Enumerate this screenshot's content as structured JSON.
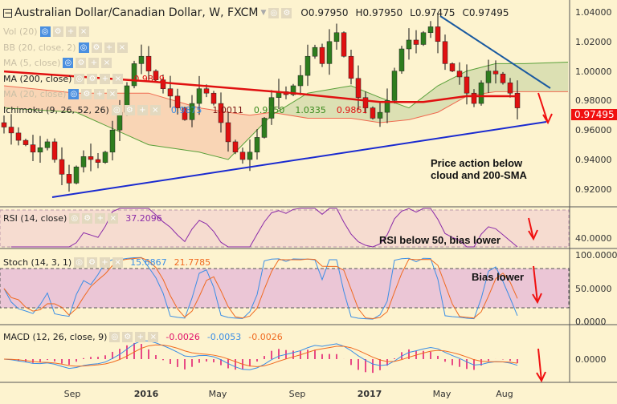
{
  "header": {
    "title": "Australian Dollar/Canadian Dollar, W, FXCM",
    "open": "O0.97950",
    "high": "H0.97950",
    "low": "L0.97475",
    "close": "C0.97495"
  },
  "indicators": [
    {
      "label": "Vol (20)",
      "faded": true
    },
    {
      "label": "BB (20, close, 2)",
      "faded": true
    },
    {
      "label": "MA (5, close)",
      "faded": true
    },
    {
      "label": "MA (200, close)",
      "faded": false,
      "values": [
        "0.9829"
      ],
      "colors": [
        "#e01010"
      ]
    },
    {
      "label": "MA (20, close)",
      "faded": true
    },
    {
      "label": "Ichimoku (9, 26, 52, 26)",
      "faded": false,
      "values": [
        "0.9875",
        "1.0011",
        "0.9750",
        "1.0335",
        "0.9861"
      ],
      "colors": [
        "#3a8ee6",
        "#7a1010",
        "#3b8a1e",
        "#3b8a1e",
        "#e01010"
      ]
    }
  ],
  "rsi": {
    "label": "RSI (14, close)",
    "value": "37.2096",
    "axis": "40.0000"
  },
  "stoch": {
    "label": "Stoch (14, 3, 1)",
    "k": "15.6867",
    "d": "21.7785",
    "axis": [
      "100.0000",
      "50.0000",
      "0.0000"
    ]
  },
  "macd": {
    "label": "MACD (12, 26, close, 9)",
    "v1": "-0.0026",
    "v2": "-0.0053",
    "v3": "-0.0026",
    "axis": "0.0000"
  },
  "price_axis": [
    "1.04000",
    "1.02000",
    "1.00000",
    "0.98000",
    "0.96000",
    "0.94000",
    "0.92000"
  ],
  "last_price": "0.97495",
  "time_axis": [
    {
      "label": "Sep",
      "bold": false
    },
    {
      "label": "2016",
      "bold": true
    },
    {
      "label": "May",
      "bold": false
    },
    {
      "label": "Sep",
      "bold": false
    },
    {
      "label": "2017",
      "bold": true
    },
    {
      "label": "May",
      "bold": false
    },
    {
      "label": "Aug",
      "bold": false
    }
  ],
  "annotations": {
    "main": "Price action below cloud and 200-SMA",
    "rsi": "RSI below 50, bias lower",
    "stoch": "Bias lower"
  },
  "colors": {
    "up": "#2e7d1e",
    "down": "#e01010",
    "ma": "#e01010",
    "rsi": "#8a2aa8",
    "k": "#3a8ee6",
    "d": "#f06a20"
  },
  "chart_data": {
    "type": "candlestick",
    "title": "Australian Dollar/Canadian Dollar, W, FXCM",
    "ylim": [
      0.91,
      1.045
    ],
    "closes": [
      0.962,
      0.958,
      0.953,
      0.95,
      0.945,
      0.948,
      0.952,
      0.94,
      0.93,
      0.924,
      0.935,
      0.942,
      0.94,
      0.938,
      0.945,
      0.96,
      0.972,
      0.99,
      1.005,
      1.01,
      1.0,
      0.994,
      0.988,
      0.983,
      0.975,
      0.967,
      0.978,
      0.988,
      0.985,
      0.978,
      0.965,
      0.952,
      0.945,
      0.94,
      0.945,
      0.955,
      0.968,
      0.982,
      0.986,
      0.984,
      0.99,
      0.997,
      1.01,
      1.016,
      1.005,
      1.02,
      1.026,
      1.01,
      0.995,
      0.982,
      0.975,
      0.968,
      0.972,
      0.98,
      1.0,
      1.015,
      1.021,
      1.018,
      1.026,
      1.03,
      1.02,
      1.005,
      1.0,
      0.996,
      0.985,
      0.978,
      0.992,
      1.0,
      0.998,
      0.992,
      0.985,
      0.975
    ],
    "ma200": [
      [
        0,
        0.9997
      ],
      [
        20,
        0.993
      ],
      [
        40,
        0.985
      ],
      [
        52,
        0.979
      ],
      [
        58,
        0.979
      ],
      [
        64,
        0.983
      ],
      [
        71,
        0.9829
      ]
    ],
    "cloud": [
      [
        0,
        0.975,
        0.99
      ],
      [
        10,
        0.972,
        0.985
      ],
      [
        20,
        0.95,
        0.985
      ],
      [
        27,
        0.945,
        0.975
      ],
      [
        31,
        0.94,
        0.972
      ],
      [
        34,
        0.955,
        0.97
      ],
      [
        37,
        0.97,
        0.972
      ],
      [
        42,
        0.985,
        0.968
      ],
      [
        48,
        0.99,
        0.968
      ],
      [
        52,
        0.982,
        0.965
      ],
      [
        56,
        0.975,
        0.967
      ],
      [
        60,
        0.99,
        0.972
      ],
      [
        64,
        1.0,
        0.983
      ],
      [
        68,
        1.005,
        0.986
      ],
      [
        72,
        1.005,
        0.986
      ],
      [
        78,
        1.006,
        0.986
      ]
    ]
  }
}
